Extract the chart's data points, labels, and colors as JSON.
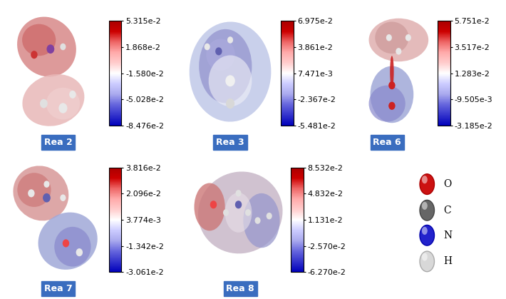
{
  "background_color": "#ffffff",
  "panels": [
    {
      "label": "Rea 2",
      "colorbar_ticks": [
        "5.315e-2",
        "1.868e-2",
        "-1.580e-2",
        "-5.028e-2",
        "-8.476e-2"
      ],
      "colorbar_vals": [
        0.05315,
        0.01868,
        -0.0158,
        -0.05028,
        -0.08476
      ],
      "vmin": -0.08476,
      "vmax": 0.05315,
      "row": 0,
      "col": 0
    },
    {
      "label": "Rea 3",
      "colorbar_ticks": [
        "6.975e-2",
        "3.861e-2",
        "7.471e-3",
        "-2.367e-2",
        "-5.481e-2"
      ],
      "colorbar_vals": [
        0.06975,
        0.03861,
        0.007471,
        -0.02367,
        -0.05481
      ],
      "vmin": -0.05481,
      "vmax": 0.06975,
      "row": 0,
      "col": 1
    },
    {
      "label": "Rea 6",
      "colorbar_ticks": [
        "5.751e-2",
        "3.517e-2",
        "1.283e-2",
        "-9.505e-3",
        "-3.185e-2"
      ],
      "colorbar_vals": [
        0.05751,
        0.03517,
        0.01283,
        -0.009505,
        -0.03185
      ],
      "vmin": -0.03185,
      "vmax": 0.05751,
      "row": 0,
      "col": 2
    },
    {
      "label": "Rea 7",
      "colorbar_ticks": [
        "3.816e-2",
        "2.096e-2",
        "3.774e-3",
        "-1.342e-2",
        "-3.061e-2"
      ],
      "colorbar_vals": [
        0.03816,
        0.02096,
        0.003774,
        -0.01342,
        -0.03061
      ],
      "vmin": -0.03061,
      "vmax": 0.03816,
      "row": 1,
      "col": 0
    },
    {
      "label": "Rea 8",
      "colorbar_ticks": [
        "8.532e-2",
        "4.832e-2",
        "1.131e-2",
        "-2.570e-2",
        "-6.270e-2"
      ],
      "colorbar_vals": [
        0.08532,
        0.04832,
        0.01131,
        -0.0257,
        -0.0627
      ],
      "vmin": -0.0627,
      "vmax": 0.08532,
      "row": 1,
      "col": 1
    }
  ],
  "legend_items": [
    {
      "label": "O",
      "color": "#cc0000"
    },
    {
      "label": "C",
      "color": "#666666"
    },
    {
      "label": "N",
      "color": "#0000cc"
    },
    {
      "label": "H",
      "color": "#dddddd"
    }
  ],
  "label_bg_color": "#3a6dbf",
  "label_text_color": "#ffffff",
  "label_fontsize": 9,
  "tick_fontsize": 8,
  "legend_fontsize": 10,
  "colormap_colors": [
    "#0000cc",
    "#4444ee",
    "#8888ff",
    "#aaaaee",
    "#ccccff",
    "#ffffff",
    "#ffcccc",
    "#ffaaaa",
    "#ff5555",
    "#cc0000"
  ],
  "figure_width": 7.1,
  "figure_height": 4.19,
  "dpi": 100
}
